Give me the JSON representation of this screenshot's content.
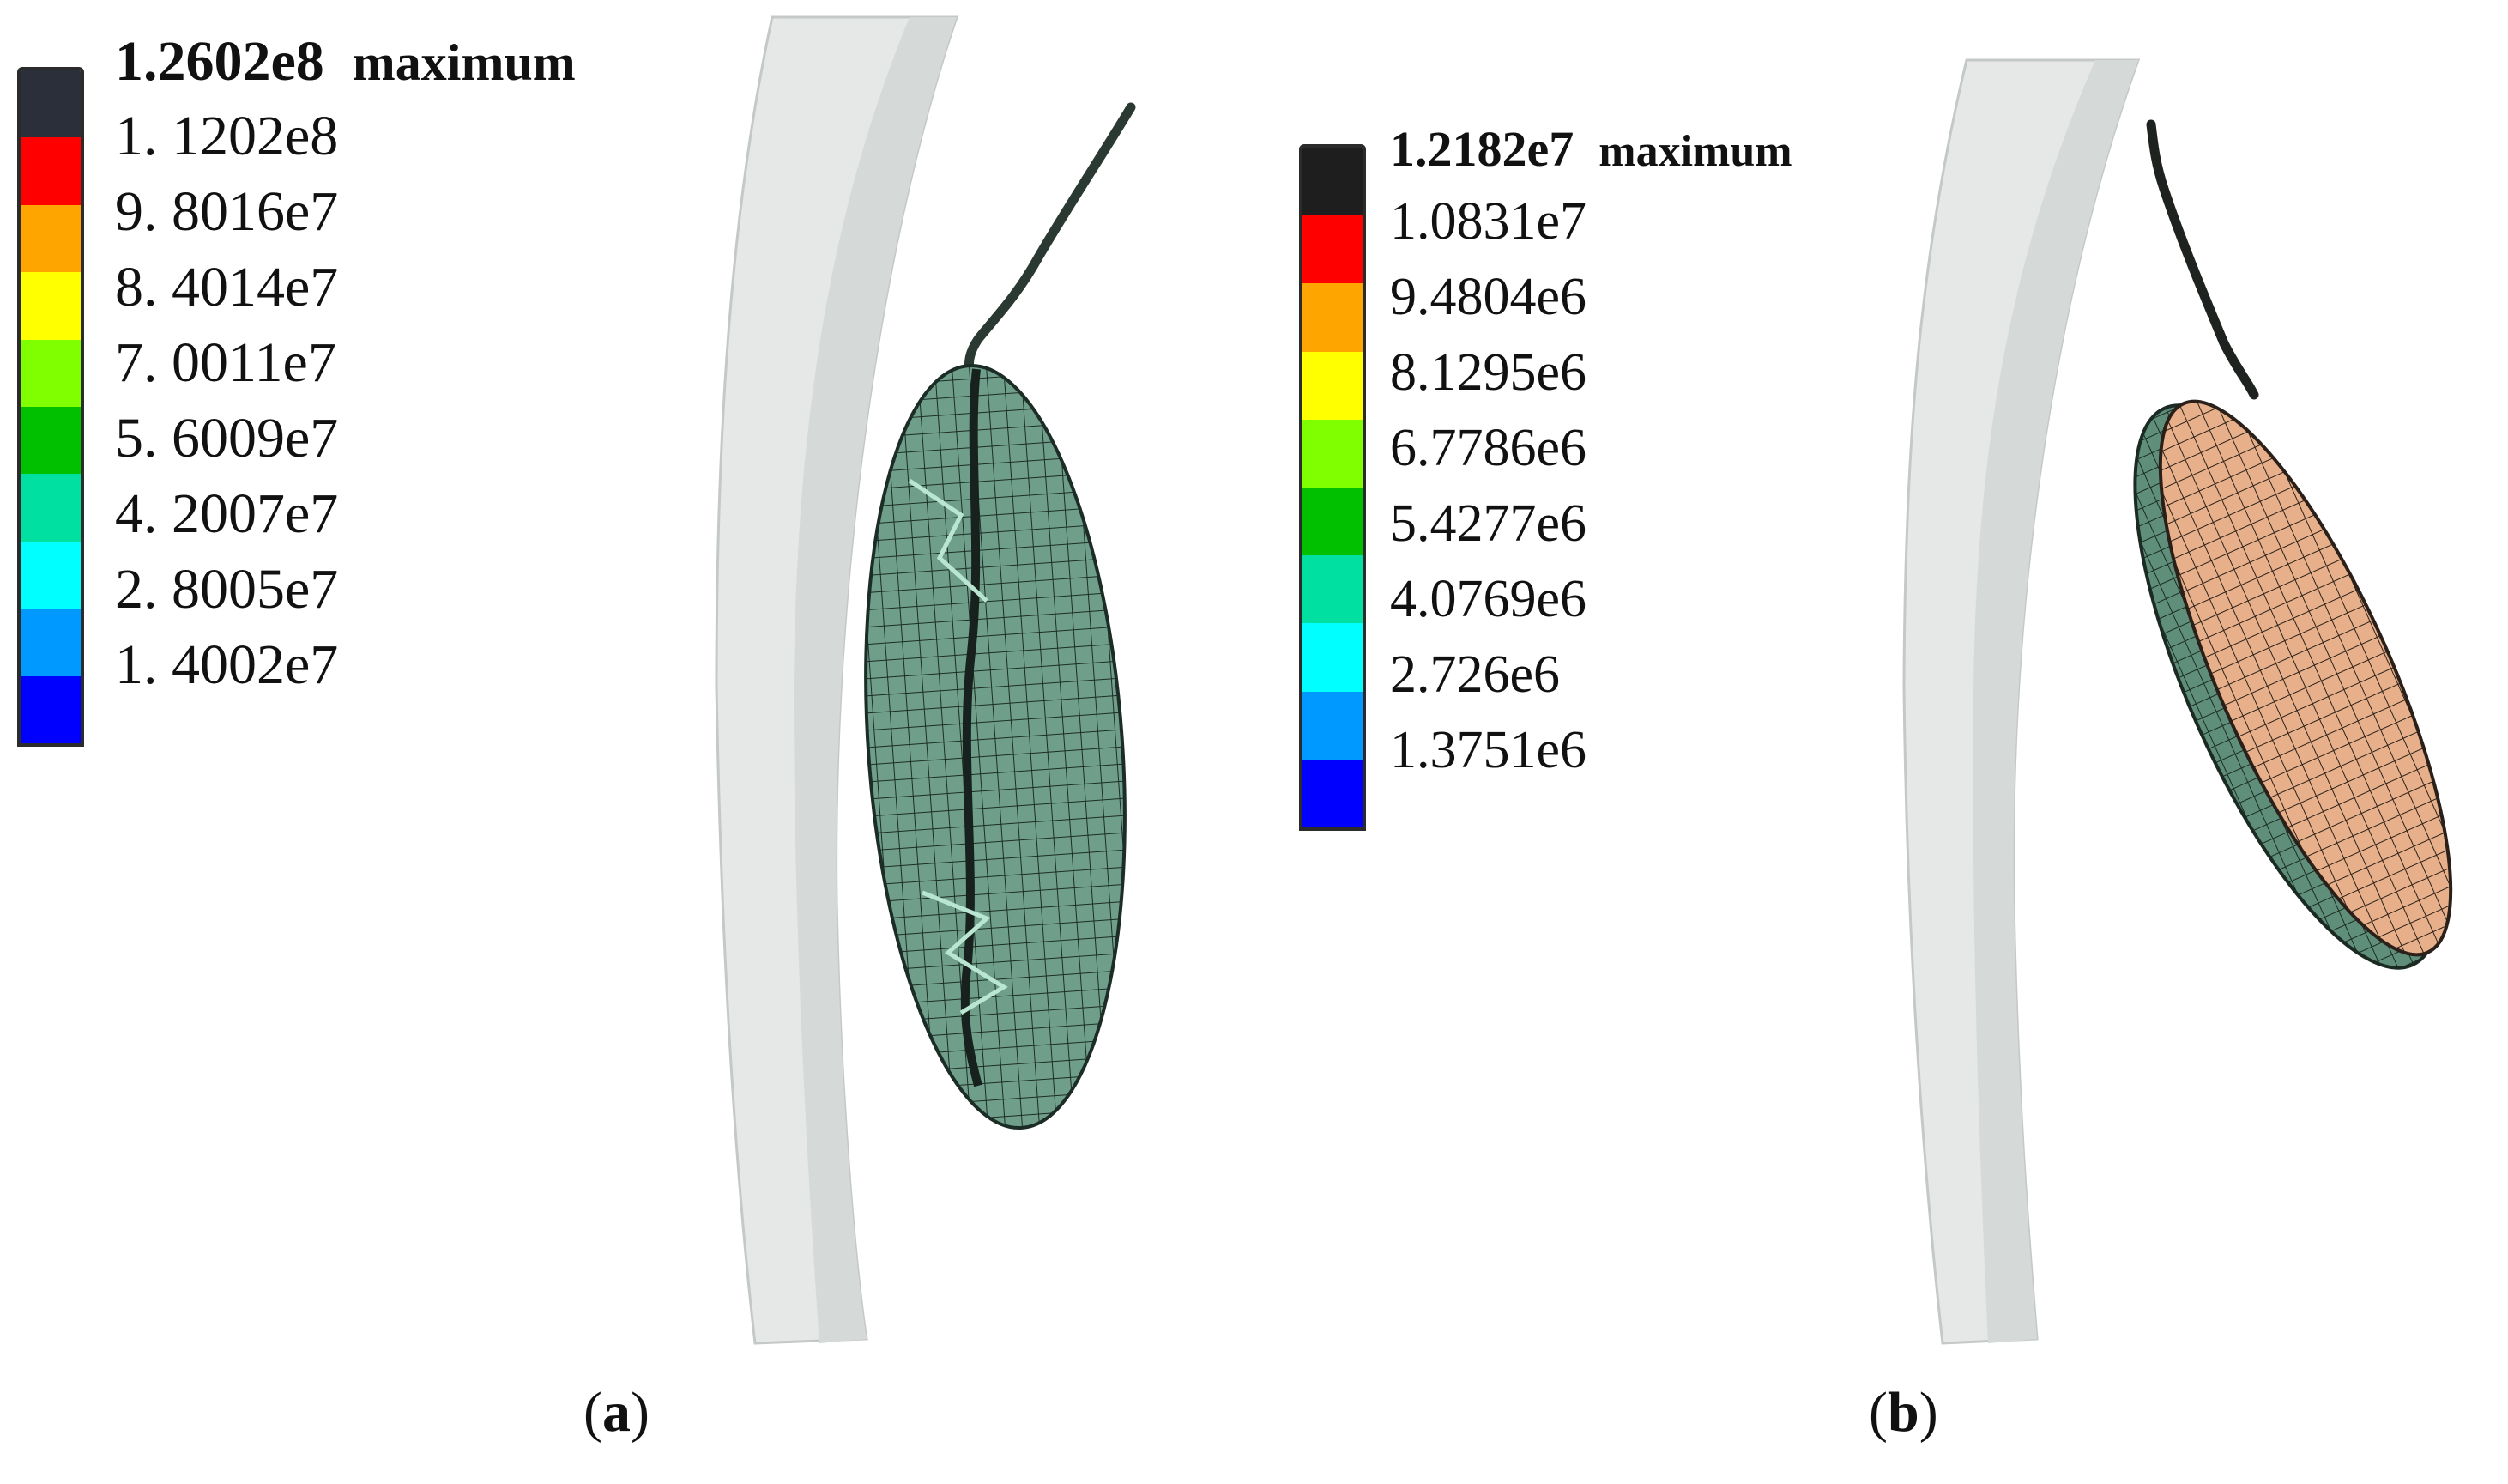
{
  "panels": [
    {
      "legend": {
        "max_value": "1.2602e8",
        "max_word": "maximum",
        "labels": [
          "1. 1202e8",
          "9. 8016e7",
          "8. 4014e7",
          "7. 0011e7",
          "5. 6009e7",
          "4. 2007e7",
          "2. 8005e7",
          "1. 4002e7"
        ],
        "colors": [
          "#2a2f3a",
          "#ff0000",
          "#ffa500",
          "#ffff00",
          "#80ff00",
          "#00c000",
          "#00e0a0",
          "#00ffff",
          "#0099ff",
          "#0000ff"
        ]
      },
      "caption": {
        "open": "(",
        "letter": "a",
        "close": ")"
      },
      "object_color": "#5a8a76"
    },
    {
      "legend": {
        "max_value": "1.2182e7",
        "max_word": "maximum",
        "labels": [
          "1.0831e7",
          "9.4804e6",
          "8.1295e6",
          "6.7786e6",
          "5.4277e6",
          "4.0769e6",
          "2.726e6",
          "1.3751e6"
        ],
        "colors": [
          "#1e1e1e",
          "#ff0000",
          "#ffa500",
          "#ffff00",
          "#80ff00",
          "#00c000",
          "#00e0a0",
          "#00ffff",
          "#0099ff",
          "#0000ff"
        ]
      },
      "caption": {
        "open": "(",
        "letter": "b",
        "close": ")"
      },
      "object_color": "#e8b08a"
    }
  ]
}
